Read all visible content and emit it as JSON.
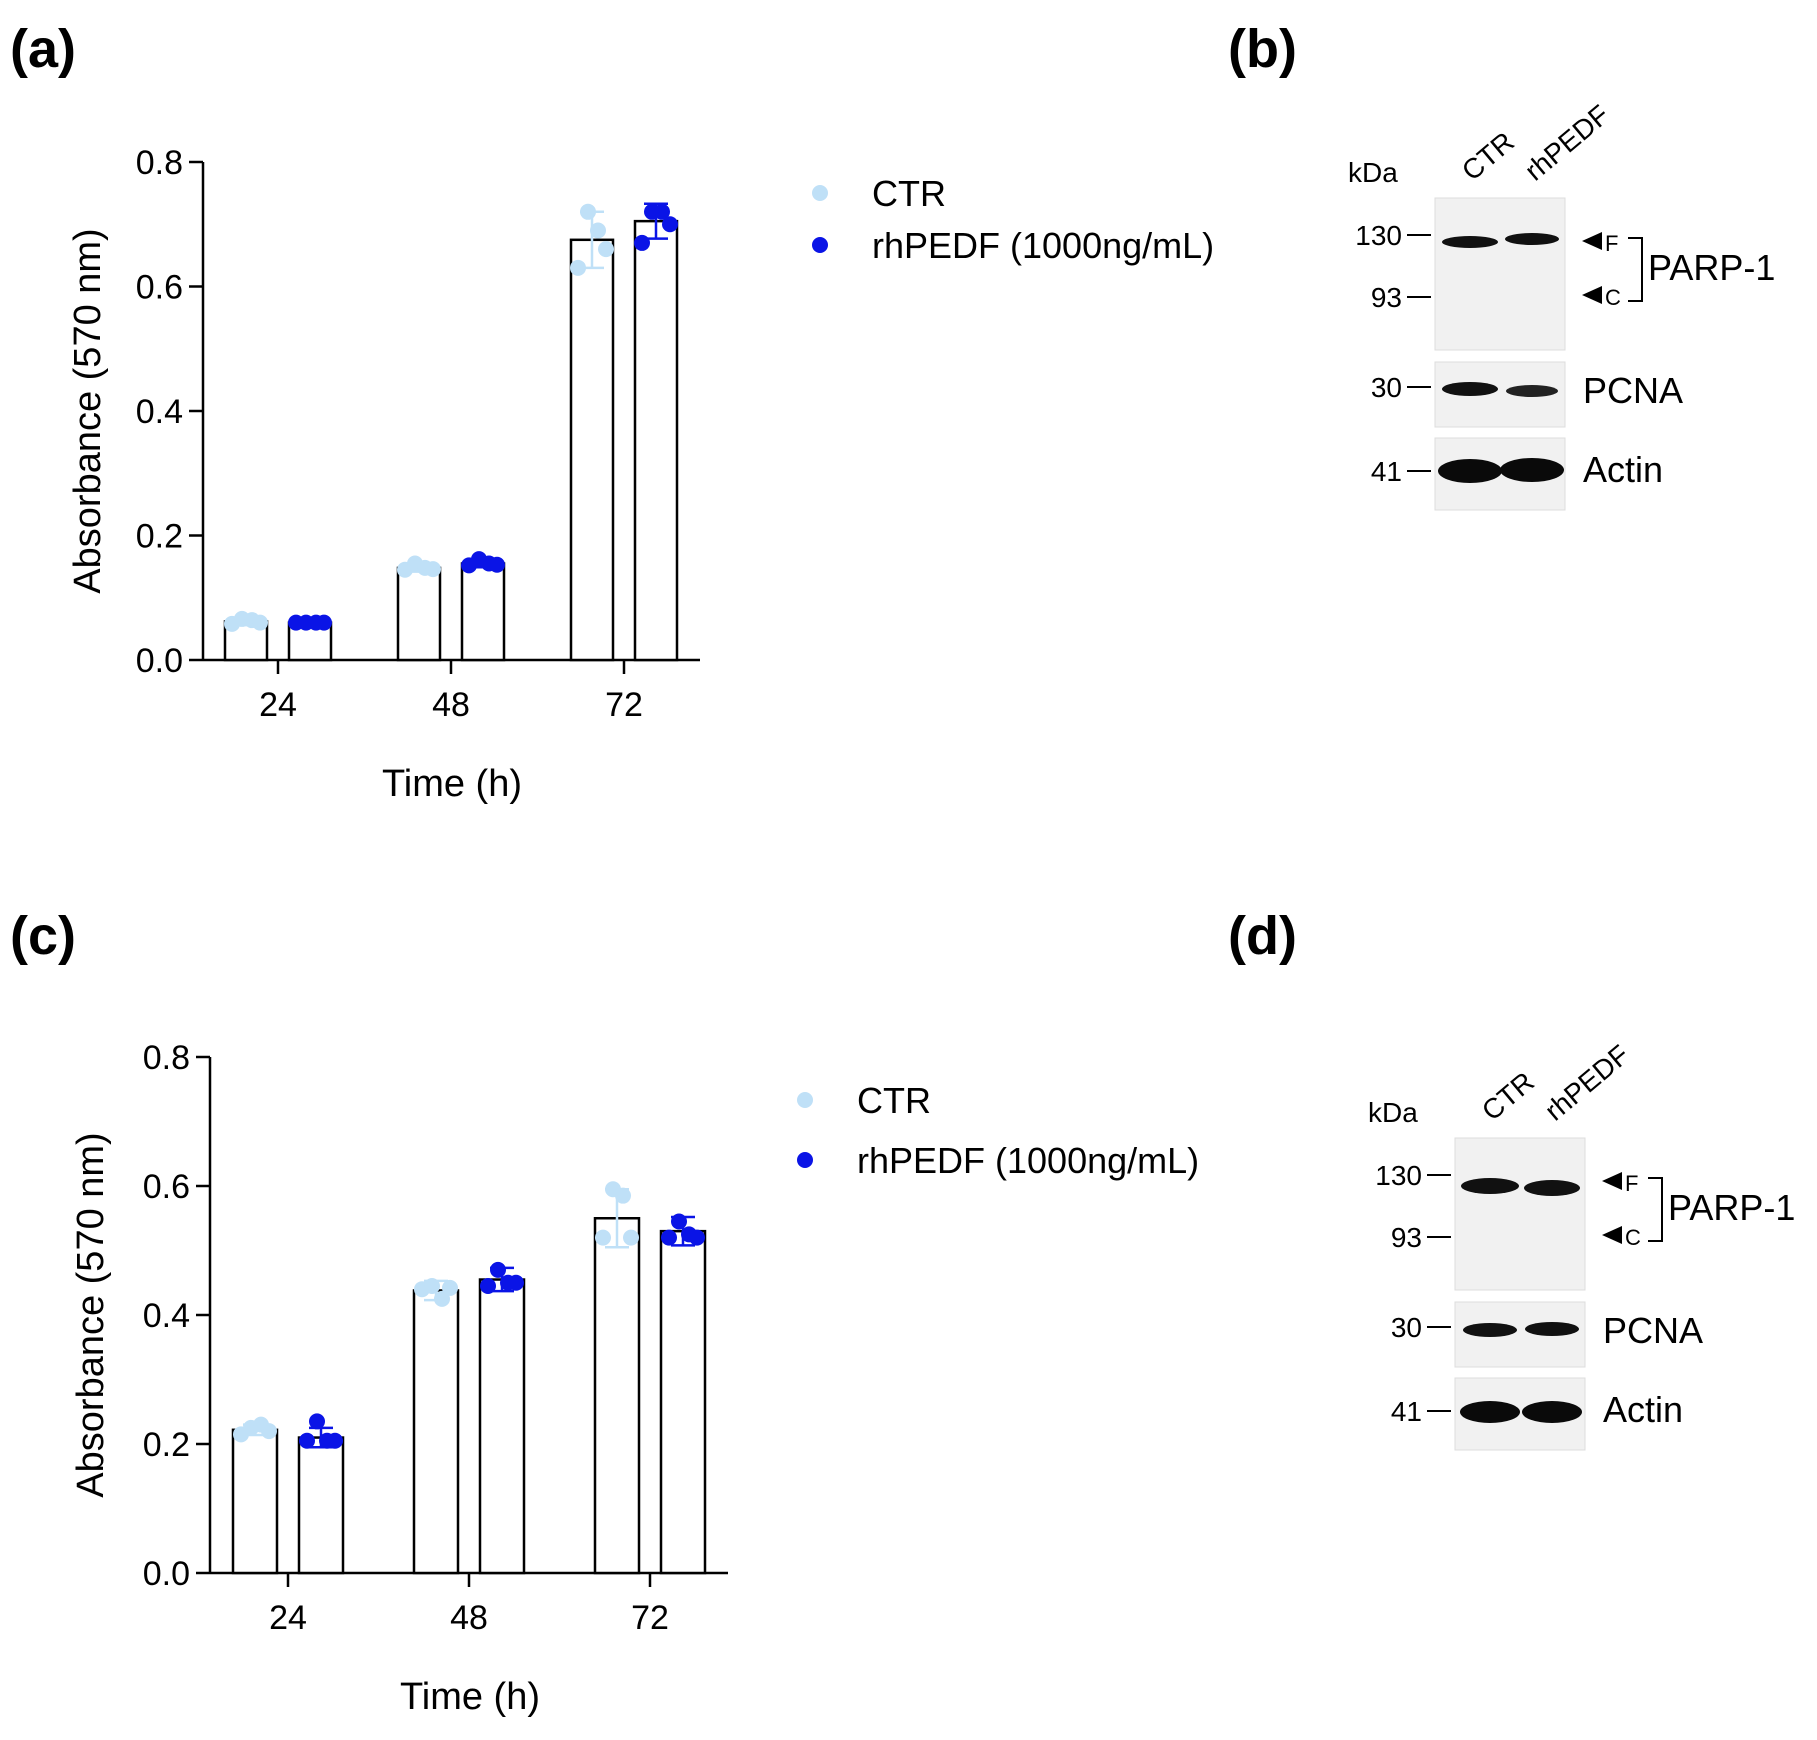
{
  "panels": {
    "a": {
      "letter": "(a)"
    },
    "b": {
      "letter": "(b)"
    },
    "c": {
      "letter": "(c)"
    },
    "d": {
      "letter": "(d)"
    }
  },
  "colors": {
    "ctr": "#bfe0f7",
    "rhpedf": "#0a14e6",
    "band": "#111111",
    "bar_fill": "#ffffff",
    "axis": "#000000"
  },
  "chart_data": [
    {
      "id": "a",
      "type": "bar",
      "xlabel": "Time (h)",
      "ylabel": "Absorbance (570 nm)",
      "ylim": [
        0,
        0.8
      ],
      "yticks": [
        "0.0",
        "0.2",
        "0.4",
        "0.6",
        "0.8"
      ],
      "categories": [
        "24",
        "48",
        "72"
      ],
      "legend": {
        "placement": "right",
        "entries": [
          "CTR",
          "rhPEDF (1000ng/mL)"
        ]
      },
      "series": [
        {
          "name": "CTR",
          "values": [
            0.062,
            0.148,
            0.675
          ],
          "sd": [
            0.006,
            0.006,
            0.045
          ],
          "points": [
            [
              0.058,
              0.066,
              0.064,
              0.06
            ],
            [
              0.145,
              0.155,
              0.148,
              0.146
            ],
            [
              0.63,
              0.72,
              0.69,
              0.66
            ]
          ]
        },
        {
          "name": "rhPEDF (1000ng/mL)",
          "values": [
            0.06,
            0.155,
            0.705
          ],
          "sd": [
            0.002,
            0.006,
            0.028
          ],
          "points": [
            [
              0.06,
              0.06,
              0.06,
              0.06
            ],
            [
              0.152,
              0.162,
              0.155,
              0.153
            ],
            [
              0.67,
              0.72,
              0.72,
              0.7
            ]
          ]
        }
      ]
    },
    {
      "id": "c",
      "type": "bar",
      "xlabel": "Time (h)",
      "ylabel": "Absorbance (570 nm)",
      "ylim": [
        0,
        0.8
      ],
      "yticks": [
        "0.0",
        "0.2",
        "0.4",
        "0.6",
        "0.8"
      ],
      "categories": [
        "24",
        "48",
        "72"
      ],
      "legend": {
        "placement": "right",
        "entries": [
          "CTR",
          "rhPEDF (1000ng/mL)"
        ]
      },
      "series": [
        {
          "name": "CTR",
          "values": [
            0.222,
            0.438,
            0.55
          ],
          "sd": [
            0.008,
            0.015,
            0.045
          ],
          "points": [
            [
              0.215,
              0.225,
              0.23,
              0.22
            ],
            [
              0.44,
              0.445,
              0.425,
              0.442
            ],
            [
              0.52,
              0.595,
              0.585,
              0.52
            ]
          ]
        },
        {
          "name": "rhPEDF (1000ng/mL)",
          "values": [
            0.21,
            0.455,
            0.53
          ],
          "sd": [
            0.015,
            0.018,
            0.022
          ],
          "points": [
            [
              0.205,
              0.235,
              0.205,
              0.205
            ],
            [
              0.445,
              0.47,
              0.45,
              0.45
            ],
            [
              0.52,
              0.545,
              0.525,
              0.52
            ]
          ]
        }
      ]
    }
  ],
  "blots": [
    {
      "id": "b",
      "kda_label": "kDa",
      "lanes": [
        "CTR",
        "rhPEDF"
      ],
      "markers": [
        "130",
        "93",
        "30",
        "41"
      ],
      "arrows": [
        "F",
        "C"
      ],
      "bracket_label": "PARP-1",
      "proteins": [
        "PCNA",
        "Actin"
      ]
    },
    {
      "id": "d",
      "kda_label": "kDa",
      "lanes": [
        "CTR",
        "rhPEDF"
      ],
      "markers": [
        "130",
        "93",
        "30",
        "41"
      ],
      "arrows": [
        "F",
        "C"
      ],
      "bracket_label": "PARP-1",
      "proteins": [
        "PCNA",
        "Actin"
      ]
    }
  ]
}
